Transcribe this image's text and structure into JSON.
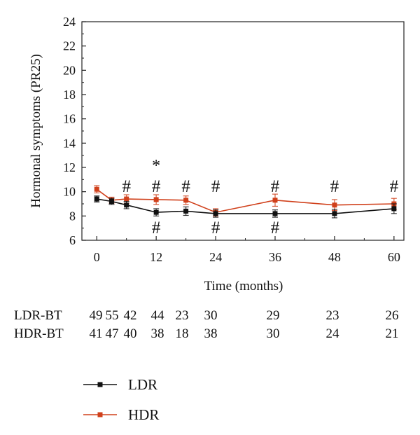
{
  "chart_data": {
    "type": "line",
    "ylabel": "Hormonal symptoms (PR25)",
    "xlabel": "Time (months)",
    "xlim": [
      -3,
      62
    ],
    "ylim": [
      6,
      24
    ],
    "x_ticks": [
      0,
      12,
      24,
      36,
      48,
      60
    ],
    "y_ticks": [
      6,
      8,
      10,
      12,
      14,
      16,
      18,
      20,
      22,
      24
    ],
    "grid": false,
    "colors": {
      "LDR": "#111111",
      "HDR": "#d0401b"
    },
    "series": [
      {
        "name": "LDR",
        "x": [
          0,
          3,
          6,
          12,
          18,
          24,
          36,
          48,
          60
        ],
        "values": [
          9.4,
          9.2,
          8.9,
          8.3,
          8.4,
          8.2,
          8.2,
          8.2,
          8.6
        ],
        "error": [
          0.25,
          0.25,
          0.3,
          0.3,
          0.35,
          0.3,
          0.3,
          0.35,
          0.4
        ]
      },
      {
        "name": "HDR",
        "x": [
          0,
          3,
          6,
          12,
          18,
          24,
          36,
          48,
          60
        ],
        "values": [
          10.2,
          9.3,
          9.4,
          9.35,
          9.3,
          8.3,
          9.3,
          8.9,
          9.0
        ],
        "error": [
          0.3,
          0.25,
          0.35,
          0.4,
          0.35,
          0.3,
          0.5,
          0.45,
          0.45
        ]
      }
    ],
    "annotations": [
      {
        "text": "#",
        "x": 6,
        "y": 10.5,
        "series": "HDR"
      },
      {
        "text": "*",
        "x": 12,
        "y": 12.4,
        "series": "LDR"
      },
      {
        "text": "#",
        "x": 12,
        "y": 10.5,
        "series": "HDR"
      },
      {
        "text": "#",
        "x": 18,
        "y": 10.5,
        "series": "HDR"
      },
      {
        "text": "#",
        "x": 24,
        "y": 10.5,
        "series": "HDR"
      },
      {
        "text": "#",
        "x": 36,
        "y": 10.5,
        "series": "HDR"
      },
      {
        "text": "#",
        "x": 48,
        "y": 10.5,
        "series": "HDR"
      },
      {
        "text": "#",
        "x": 60,
        "y": 10.5,
        "series": "HDR"
      },
      {
        "text": "#",
        "x": 12,
        "y": 7.1,
        "series": "LDR"
      },
      {
        "text": "#",
        "x": 24,
        "y": 7.1,
        "series": "LDR"
      },
      {
        "text": "#",
        "x": 36,
        "y": 7.1,
        "series": "LDR"
      }
    ],
    "n_table": {
      "x": [
        0,
        3,
        6,
        12,
        18,
        24,
        36,
        48,
        60
      ],
      "rows": [
        {
          "label": "LDR-BT",
          "values": [
            "49",
            "55",
            "42",
            "44",
            "23",
            "30",
            "29",
            "23",
            "26"
          ]
        },
        {
          "label": "HDR-BT",
          "values": [
            "41",
            "47",
            "40",
            "38",
            "18",
            "38",
            "30",
            "24",
            "21"
          ]
        }
      ]
    },
    "legend": {
      "placement": "bottom-left",
      "entries": [
        "LDR",
        "HDR"
      ]
    }
  }
}
